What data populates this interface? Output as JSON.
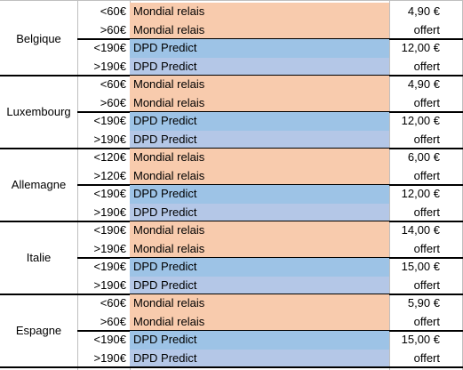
{
  "colors": {
    "mondial_relais": "#f8cbad",
    "dpd_predict_under": "#9dc3e6",
    "dpd_predict_over": "#b4c7e7"
  },
  "countries": [
    {
      "name": "Belgique",
      "rows": [
        {
          "threshold": "<60€",
          "carrier": "Mondial relais",
          "price": "4,90 €",
          "color": "mr"
        },
        {
          "threshold": ">60€",
          "carrier": "Mondial relais",
          "price": "offert",
          "color": "mr"
        },
        {
          "threshold": "<190€",
          "carrier": "DPD Predict",
          "price": "12,00 €",
          "color": "dpd1"
        },
        {
          "threshold": ">190€",
          "carrier": "DPD Predict",
          "price": "offert",
          "color": "dpd2"
        }
      ]
    },
    {
      "name": "Luxembourg",
      "rows": [
        {
          "threshold": "<60€",
          "carrier": "Mondial relais",
          "price": "4,90 €",
          "color": "mr"
        },
        {
          "threshold": ">60€",
          "carrier": "Mondial relais",
          "price": "offert",
          "color": "mr"
        },
        {
          "threshold": "<190€",
          "carrier": "DPD Predict",
          "price": "12,00 €",
          "color": "dpd1"
        },
        {
          "threshold": ">190€",
          "carrier": "DPD Predict",
          "price": "offert",
          "color": "dpd2"
        }
      ]
    },
    {
      "name": "Allemagne",
      "rows": [
        {
          "threshold": "<120€",
          "carrier": "Mondial relais",
          "price": "6,00 €",
          "color": "mr"
        },
        {
          "threshold": ">120€",
          "carrier": "Mondial relais",
          "price": "offert",
          "color": "mr"
        },
        {
          "threshold": "<190€",
          "carrier": "DPD Predict",
          "price": "12,00 €",
          "color": "dpd1"
        },
        {
          "threshold": ">190€",
          "carrier": "DPD Predict",
          "price": "offert",
          "color": "dpd2"
        }
      ]
    },
    {
      "name": "Italie",
      "rows": [
        {
          "threshold": "<190€",
          "carrier": "Mondial relais",
          "price": "14,00 €",
          "color": "mr"
        },
        {
          "threshold": ">190€",
          "carrier": "Mondial relais",
          "price": "offert",
          "color": "mr"
        },
        {
          "threshold": "<190€",
          "carrier": "DPD Predict",
          "price": "15,00 €",
          "color": "dpd1"
        },
        {
          "threshold": ">190€",
          "carrier": "DPD Predict",
          "price": "offert",
          "color": "dpd2"
        }
      ]
    },
    {
      "name": "Espagne",
      "rows": [
        {
          "threshold": "<60€",
          "carrier": "Mondial relais",
          "price": "5,90 €",
          "color": "mr"
        },
        {
          "threshold": ">60€",
          "carrier": "Mondial relais",
          "price": "offert",
          "color": "mr"
        },
        {
          "threshold": "<190€",
          "carrier": "DPD Predict",
          "price": "15,00 €",
          "color": "dpd1"
        },
        {
          "threshold": ">190€",
          "carrier": "DPD Predict",
          "price": "offert",
          "color": "dpd2"
        }
      ]
    }
  ]
}
